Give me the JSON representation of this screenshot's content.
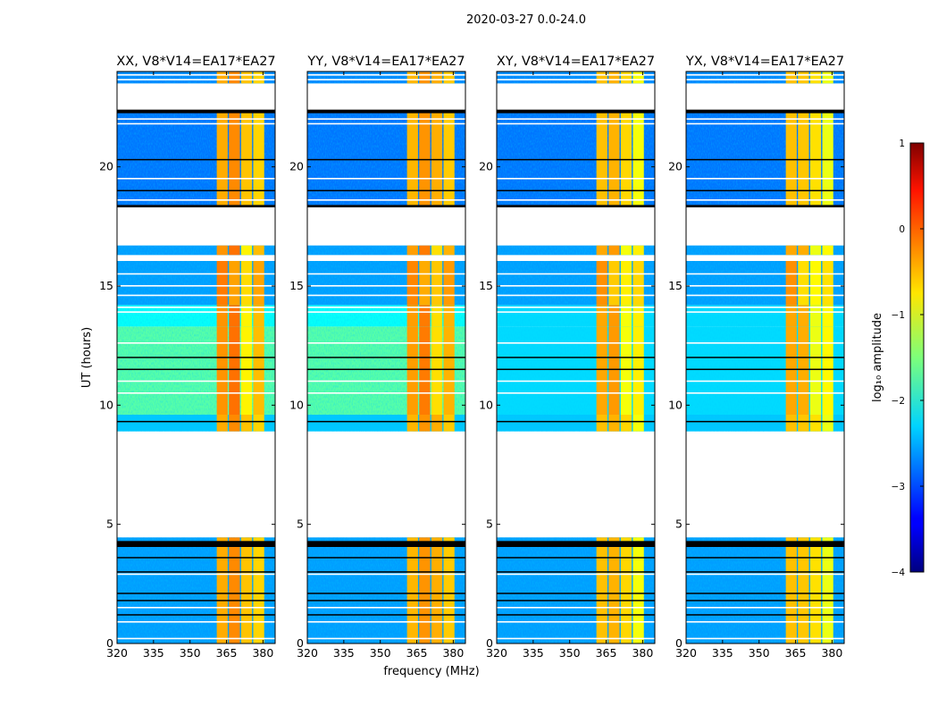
{
  "chart_data": {
    "type": "heatmap",
    "title": "2020-03-27 0.0-24.0",
    "xlabel": "frequency (MHz)",
    "ylabel": "UT (hours)",
    "xlim": [
      320,
      385
    ],
    "ylim": [
      0,
      24
    ],
    "xticks": [
      320,
      335,
      350,
      365,
      380
    ],
    "yticks": [
      0,
      5,
      10,
      15,
      20
    ],
    "colorbar": {
      "label": "log₁₀ amplitude",
      "range": [
        -4,
        1
      ],
      "ticks": [
        1,
        0,
        -1,
        -2,
        -3,
        -4
      ],
      "tick_labels": [
        "1",
        "0",
        "−1",
        "−2",
        "−3",
        "−4"
      ],
      "colormap": "jet"
    },
    "band_MHz": [
      [
        361,
        365.5
      ],
      [
        366,
        370.5
      ],
      [
        371,
        375.5
      ],
      [
        376,
        380.5
      ]
    ],
    "segments_hours": [
      {
        "start": 0.0,
        "end": 4.45,
        "level": -2.6,
        "level_green": -2.6
      },
      {
        "start": 8.9,
        "end": 9.6,
        "level": -2.4,
        "level_green": -2.4
      },
      {
        "start": 9.6,
        "end": 13.3,
        "level": -2.3,
        "level_green": -1.7
      },
      {
        "start": 13.3,
        "end": 14.2,
        "level": -2.3,
        "level_green": -2.1
      },
      {
        "start": 14.2,
        "end": 16.05,
        "level": -2.6,
        "level_green": -2.6
      },
      {
        "start": 16.3,
        "end": 16.7,
        "level": -2.6,
        "level_green": -2.6
      },
      {
        "start": 18.3,
        "end": 22.3,
        "level": -2.8,
        "level_green": -2.8
      },
      {
        "start": 23.5,
        "end": 24.0,
        "level": -2.7,
        "level_green": -2.7
      }
    ],
    "flagged_black_hours": [
      [
        4.05,
        4.3
      ],
      [
        3.6,
        3.63
      ],
      [
        3.0,
        3.03
      ],
      [
        2.1,
        2.13
      ],
      [
        1.8,
        1.83
      ],
      [
        1.2,
        1.23
      ],
      [
        9.3,
        9.34
      ],
      [
        11.5,
        11.53
      ],
      [
        12.0,
        12.03
      ],
      [
        20.3,
        20.33
      ],
      [
        19.0,
        19.03
      ],
      [
        22.25,
        22.4
      ],
      [
        18.3,
        18.4
      ]
    ],
    "flagged_white_hours": [
      23.65,
      23.85,
      22.0,
      21.8,
      19.5,
      18.6,
      15.5,
      15.0,
      14.6,
      14.1,
      13.9,
      12.6,
      11.0,
      10.5,
      2.9,
      1.5,
      0.9,
      0.2
    ],
    "panels": [
      {
        "title": "XX, V8*V14=EA17*EA27",
        "green_mid": true,
        "band_levels": [
          -0.35,
          -0.3,
          -0.7,
          -0.55
        ]
      },
      {
        "title": "YY, V8*V14=EA17*EA27",
        "green_mid": true,
        "band_levels": [
          -0.4,
          -0.35,
          -0.6,
          -0.5
        ]
      },
      {
        "title": "XY, V8*V14=EA17*EA27",
        "green_mid": false,
        "band_levels": [
          -0.45,
          -0.5,
          -0.8,
          -0.8
        ]
      },
      {
        "title": "YX, V8*V14=EA17*EA27",
        "green_mid": false,
        "band_levels": [
          -0.45,
          -0.6,
          -0.85,
          -0.85
        ]
      }
    ]
  }
}
